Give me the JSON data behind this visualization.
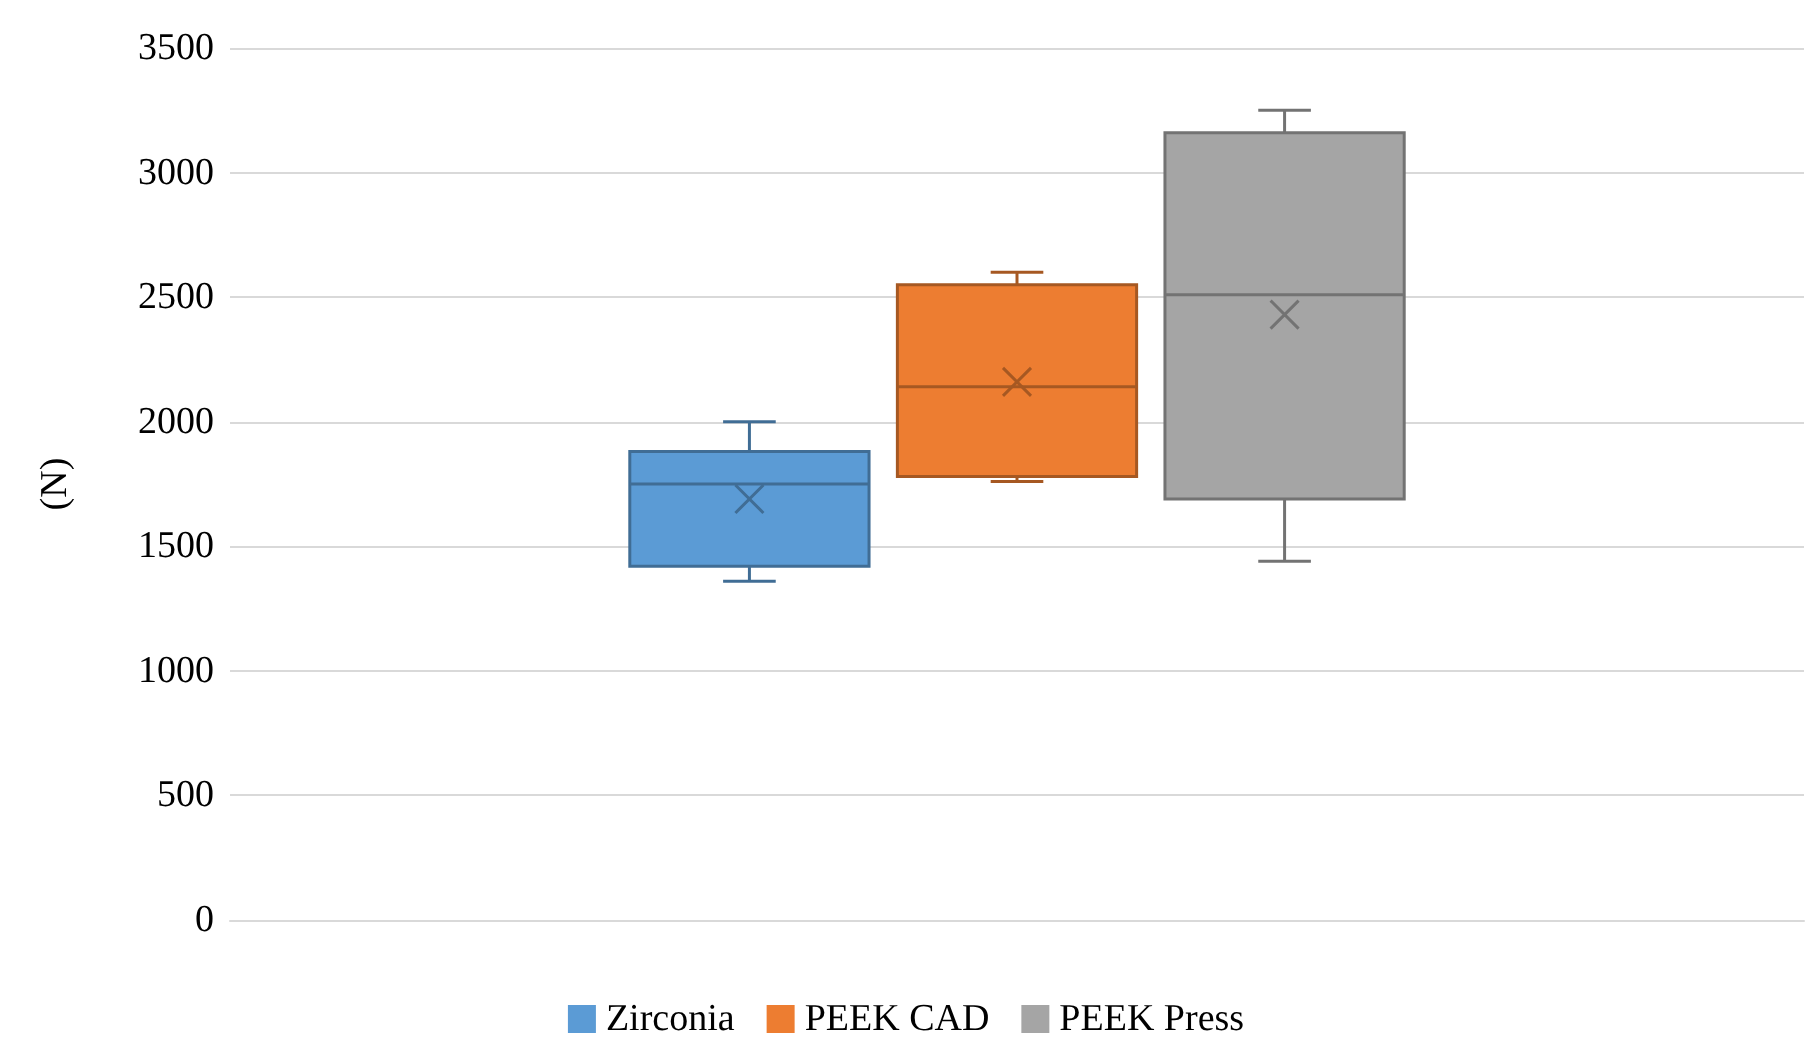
{
  "chart_data": {
    "type": "box",
    "ylabel": "(N)",
    "categories": [
      null
    ],
    "series": [
      {
        "name": "Zirconia",
        "color": "#5b9bd5",
        "boxes": [
          {
            "low": 1360,
            "q1": 1420,
            "median": 1750,
            "q3": 1880,
            "high": 2000,
            "mean": 1690
          }
        ]
      },
      {
        "name": "PEEK CAD",
        "color": "#ed7d31",
        "boxes": [
          {
            "low": 1760,
            "q1": 1780,
            "median": 2140,
            "q3": 2550,
            "high": 2600,
            "mean": 2160
          }
        ]
      },
      {
        "name": "PEEK Press",
        "color": "#a5a5a5",
        "boxes": [
          {
            "low": 1440,
            "q1": 1690,
            "median": 2510,
            "q3": 3160,
            "high": 3250,
            "mean": 2430
          }
        ]
      }
    ],
    "ylim": [
      0,
      3500
    ],
    "yticks": [
      0,
      500,
      1000,
      1500,
      2000,
      2500,
      3000,
      3500
    ],
    "grid": "y",
    "legend": "bottom"
  }
}
